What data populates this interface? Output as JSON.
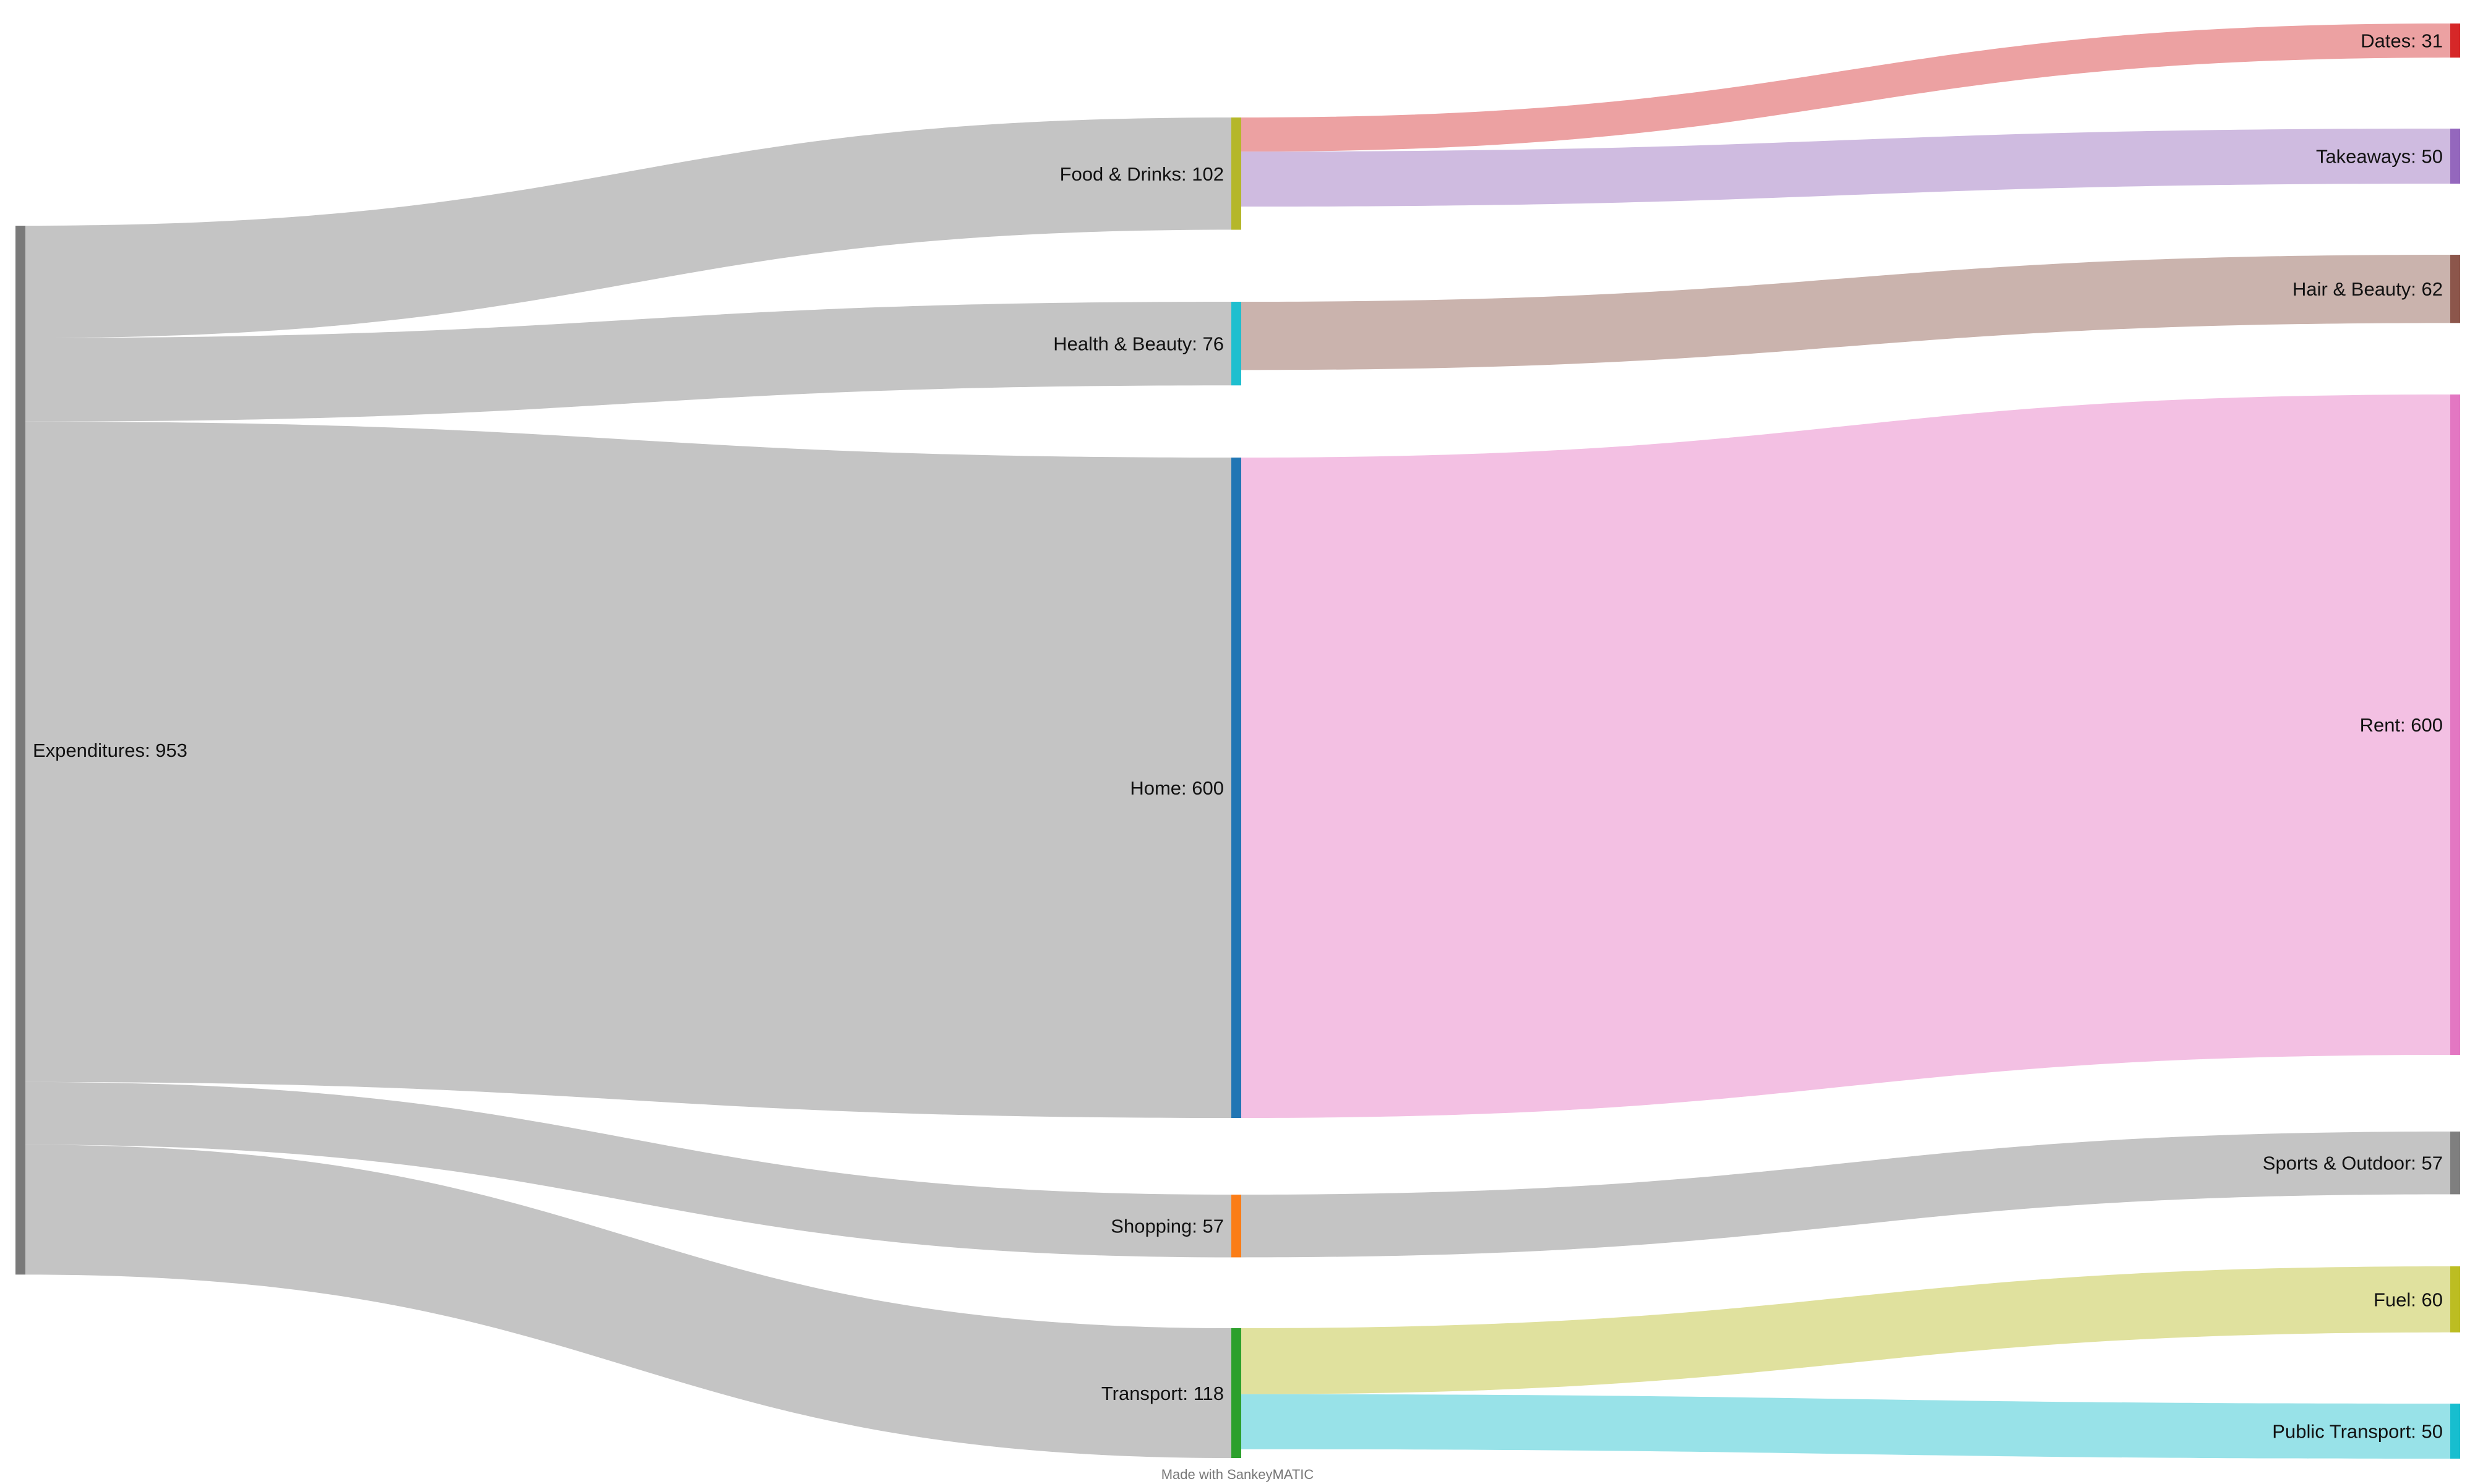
{
  "diagram": {
    "type": "sankey",
    "footer_text": "Made with SankeyMATIC",
    "link_color_default": "#c4c4c4",
    "nodes": [
      {
        "id": "expenditures",
        "label": "Expenditures",
        "value": 953,
        "color": "#7a7a7a"
      },
      {
        "id": "food",
        "label": "Food & Drinks",
        "value": 102,
        "color": "#b5b72a"
      },
      {
        "id": "health",
        "label": "Health & Beauty",
        "value": 76,
        "color": "#1fbfcf"
      },
      {
        "id": "home",
        "label": "Home",
        "value": 600,
        "color": "#2176b4"
      },
      {
        "id": "shopping",
        "label": "Shopping",
        "value": 57,
        "color": "#fb7d17"
      },
      {
        "id": "transport",
        "label": "Transport",
        "value": 118,
        "color": "#2ca02c"
      },
      {
        "id": "dates",
        "label": "Dates",
        "value": 31,
        "color": "#d62728"
      },
      {
        "id": "takeaways",
        "label": "Takeaways",
        "value": 50,
        "color": "#9467bd"
      },
      {
        "id": "hair",
        "label": "Hair & Beauty",
        "value": 62,
        "color": "#8c564b"
      },
      {
        "id": "rent",
        "label": "Rent",
        "value": 600,
        "color": "#e377c2"
      },
      {
        "id": "sports",
        "label": "Sports & Outdoor",
        "value": 57,
        "color": "#7f7f7f"
      },
      {
        "id": "fuel",
        "label": "Fuel",
        "value": 60,
        "color": "#bcbd22"
      },
      {
        "id": "public",
        "label": "Public Transport",
        "value": 50,
        "color": "#17becf"
      }
    ],
    "links": [
      {
        "source": "expenditures",
        "target": "food",
        "value": 102,
        "color": "#c4c4c4"
      },
      {
        "source": "expenditures",
        "target": "health",
        "value": 76,
        "color": "#c4c4c4"
      },
      {
        "source": "expenditures",
        "target": "home",
        "value": 600,
        "color": "#c4c4c4"
      },
      {
        "source": "expenditures",
        "target": "shopping",
        "value": 57,
        "color": "#c4c4c4"
      },
      {
        "source": "expenditures",
        "target": "transport",
        "value": 118,
        "color": "#c4c4c4"
      },
      {
        "source": "food",
        "target": "dates",
        "value": 31,
        "color": "#eca1a2"
      },
      {
        "source": "food",
        "target": "takeaways",
        "value": 50,
        "color": "#cfbbe0"
      },
      {
        "source": "health",
        "target": "hair",
        "value": 62,
        "color": "#cab3ad"
      },
      {
        "source": "home",
        "target": "rent",
        "value": 600,
        "color": "#f3c0e3"
      },
      {
        "source": "shopping",
        "target": "sports",
        "value": 57,
        "color": "#c4c4c4"
      },
      {
        "source": "transport",
        "target": "fuel",
        "value": 60,
        "color": "#e0e19e"
      },
      {
        "source": "transport",
        "target": "public",
        "value": 50,
        "color": "#98e2e8"
      }
    ]
  }
}
